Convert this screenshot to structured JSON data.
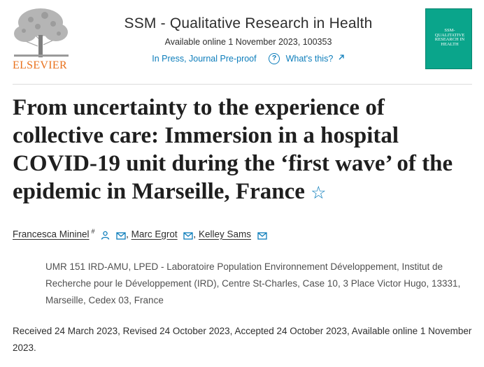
{
  "header": {
    "publisher": "ELSEVIER",
    "journal_title": "SSM - Qualitative Research in Health",
    "availability": "Available online 1 November 2023, 100353",
    "status_link": "In Press, Journal Pre-proof",
    "help_link": "What's this?",
    "cover_title": "SSM-QUALITATIVE RESEARCH IN HEALTH"
  },
  "colors": {
    "link": "#0c7dbb",
    "publisher_orange": "#e9711c",
    "cover_teal": "#0aa58b"
  },
  "article": {
    "title": "From uncertainty to the experience of collective care: Immersion in a hospital COVID-19 unit during the ‘first wave’ of the epidemic in Marseille, France",
    "star_icon": "☆"
  },
  "authors": [
    {
      "name": "Francesca Mininel",
      "sup": "#"
    },
    {
      "name": "Marc Egrot"
    },
    {
      "name": "Kelley Sams"
    }
  ],
  "separator": ",",
  "affiliation": "UMR 151 IRD-AMU, LPED - Laboratoire Population Environnement Développement, Institut de Recherche pour le Développement (IRD), Centre St-Charles, Case 10, 3 Place Victor Hugo, 13331, Marseille, Cedex 03, France",
  "history": "Received 24 March 2023, Revised 24 October 2023, Accepted 24 October 2023, Available online 1 November 2023."
}
